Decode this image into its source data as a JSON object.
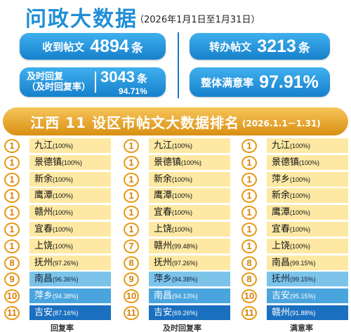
{
  "header": {
    "title": "问政大数据",
    "date_range": "（2026年1月1日至1月31日）"
  },
  "stats": {
    "posts": {
      "label": "收到帖文",
      "value": "4894",
      "unit": "条"
    },
    "transferred": {
      "label": "转办帖文",
      "value": "3213",
      "unit": "条"
    },
    "timely": {
      "label_line1": "及时回复",
      "label_line2": "（及时回复率）",
      "value": "3043",
      "unit": "条",
      "rate": "94.71%"
    },
    "satisfaction": {
      "label": "整体满意率",
      "value": "97.91%"
    }
  },
  "ranking": {
    "title": "江西 11 设区市帖文大数据排名",
    "date": "(2026.1.1－1.31)",
    "columns": [
      {
        "footer": "回复率",
        "rows": [
          {
            "rank": "1",
            "city": "九江",
            "pct": "(100%)",
            "tone": "y"
          },
          {
            "rank": "1",
            "city": "景德镇",
            "pct": "(100%)",
            "tone": "y"
          },
          {
            "rank": "1",
            "city": "新余",
            "pct": "(100%)",
            "tone": "y"
          },
          {
            "rank": "1",
            "city": "鹰潭",
            "pct": "(100%)",
            "tone": "y"
          },
          {
            "rank": "1",
            "city": "赣州",
            "pct": "(100%)",
            "tone": "y"
          },
          {
            "rank": "1",
            "city": "宜春",
            "pct": "(100%)",
            "tone": "y"
          },
          {
            "rank": "1",
            "city": "上饶",
            "pct": "(100%)",
            "tone": "y"
          },
          {
            "rank": "8",
            "city": "抚州",
            "pct": "(97.26%)",
            "tone": "y"
          },
          {
            "rank": "9",
            "city": "南昌",
            "pct": "(96.36%)",
            "tone": "bl"
          },
          {
            "rank": "10",
            "city": "萍乡",
            "pct": "(94.38%)",
            "tone": "bm"
          },
          {
            "rank": "11",
            "city": "吉安",
            "pct": "(87.16%)",
            "tone": "bd"
          }
        ]
      },
      {
        "footer": "及时回复率",
        "rows": [
          {
            "rank": "1",
            "city": "九江",
            "pct": "(100%)",
            "tone": "y"
          },
          {
            "rank": "1",
            "city": "景德镇",
            "pct": "(100%)",
            "tone": "y"
          },
          {
            "rank": "1",
            "city": "新余",
            "pct": "(100%)",
            "tone": "y"
          },
          {
            "rank": "1",
            "city": "鹰潭",
            "pct": "(100%)",
            "tone": "y"
          },
          {
            "rank": "1",
            "city": "宜春",
            "pct": "(100%)",
            "tone": "y"
          },
          {
            "rank": "1",
            "city": "上饶",
            "pct": "(100%)",
            "tone": "y"
          },
          {
            "rank": "7",
            "city": "赣州",
            "pct": "(99.48%)",
            "tone": "y"
          },
          {
            "rank": "8",
            "city": "抚州",
            "pct": "(97.26%)",
            "tone": "y"
          },
          {
            "rank": "9",
            "city": "萍乡",
            "pct": "(94.38%)",
            "tone": "bl"
          },
          {
            "rank": "10",
            "city": "南昌",
            "pct": "(94.13%)",
            "tone": "bm"
          },
          {
            "rank": "11",
            "city": "吉安",
            "pct": "(69.26%)",
            "tone": "bd"
          }
        ]
      },
      {
        "footer": "满意率",
        "rows": [
          {
            "rank": "1",
            "city": "九江",
            "pct": "(100%)",
            "tone": "y"
          },
          {
            "rank": "1",
            "city": "景德镇",
            "pct": "(100%)",
            "tone": "y"
          },
          {
            "rank": "1",
            "city": "萍乡",
            "pct": "(100%)",
            "tone": "y"
          },
          {
            "rank": "1",
            "city": "新余",
            "pct": "(100%)",
            "tone": "y"
          },
          {
            "rank": "1",
            "city": "鹰潭",
            "pct": "(100%)",
            "tone": "y"
          },
          {
            "rank": "1",
            "city": "宜春",
            "pct": "(100%)",
            "tone": "y"
          },
          {
            "rank": "1",
            "city": "上饶",
            "pct": "(100%)",
            "tone": "y"
          },
          {
            "rank": "8",
            "city": "南昌",
            "pct": "(99.15%)",
            "tone": "y"
          },
          {
            "rank": "8",
            "city": "抚州",
            "pct": "(99.15%)",
            "tone": "bl"
          },
          {
            "rank": "10",
            "city": "吉安",
            "pct": "(95.15%)",
            "tone": "bm"
          },
          {
            "rank": "11",
            "city": "赣州",
            "pct": "(91.88%)",
            "tone": "bd"
          }
        ]
      }
    ]
  }
}
